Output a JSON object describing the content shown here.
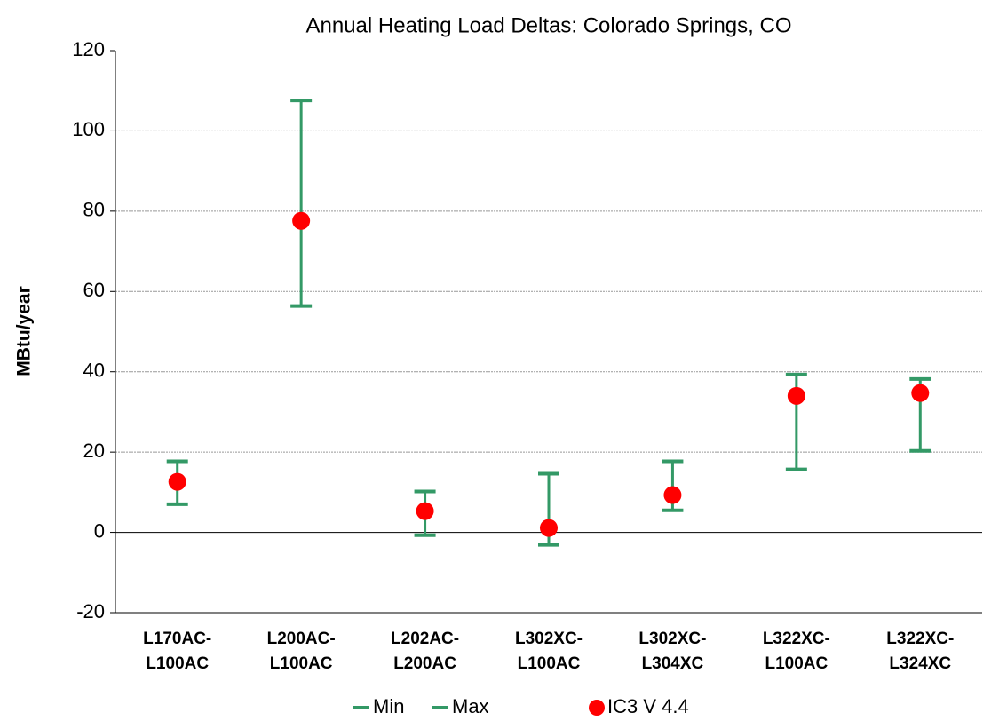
{
  "chart_data": {
    "type": "errorbar",
    "title": "Annual Heating Load Deltas:  Colorado Springs, CO",
    "y_label": "MBtu/year",
    "categories": [
      [
        "L170AC-",
        "L100AC"
      ],
      [
        "L200AC-",
        "L100AC"
      ],
      [
        "L202AC-",
        "L200AC"
      ],
      [
        "L302XC-",
        "L100AC"
      ],
      [
        "L302XC-",
        "L304XC"
      ],
      [
        "L322XC-",
        "L100AC"
      ],
      [
        "L322XC-",
        "L324XC"
      ]
    ],
    "series": [
      {
        "name": "Min",
        "color": "#339966",
        "marker": "dash",
        "values": [
          7.0,
          56.4,
          -0.7,
          -3.1,
          5.5,
          15.7,
          20.3
        ]
      },
      {
        "name": "Max",
        "color": "#339966",
        "marker": "dash",
        "values": [
          17.7,
          107.6,
          10.2,
          14.6,
          17.7,
          39.3,
          38.2
        ]
      },
      {
        "name": "IC3 V 4.4",
        "color": "#ff0000",
        "marker": "circle",
        "values": [
          12.6,
          77.6,
          5.3,
          1.1,
          9.3,
          34.0,
          34.7
        ]
      }
    ],
    "ylim": [
      -20,
      120
    ],
    "yticks": [
      -20,
      0,
      20,
      40,
      60,
      80,
      100,
      120
    ],
    "grid": true
  }
}
